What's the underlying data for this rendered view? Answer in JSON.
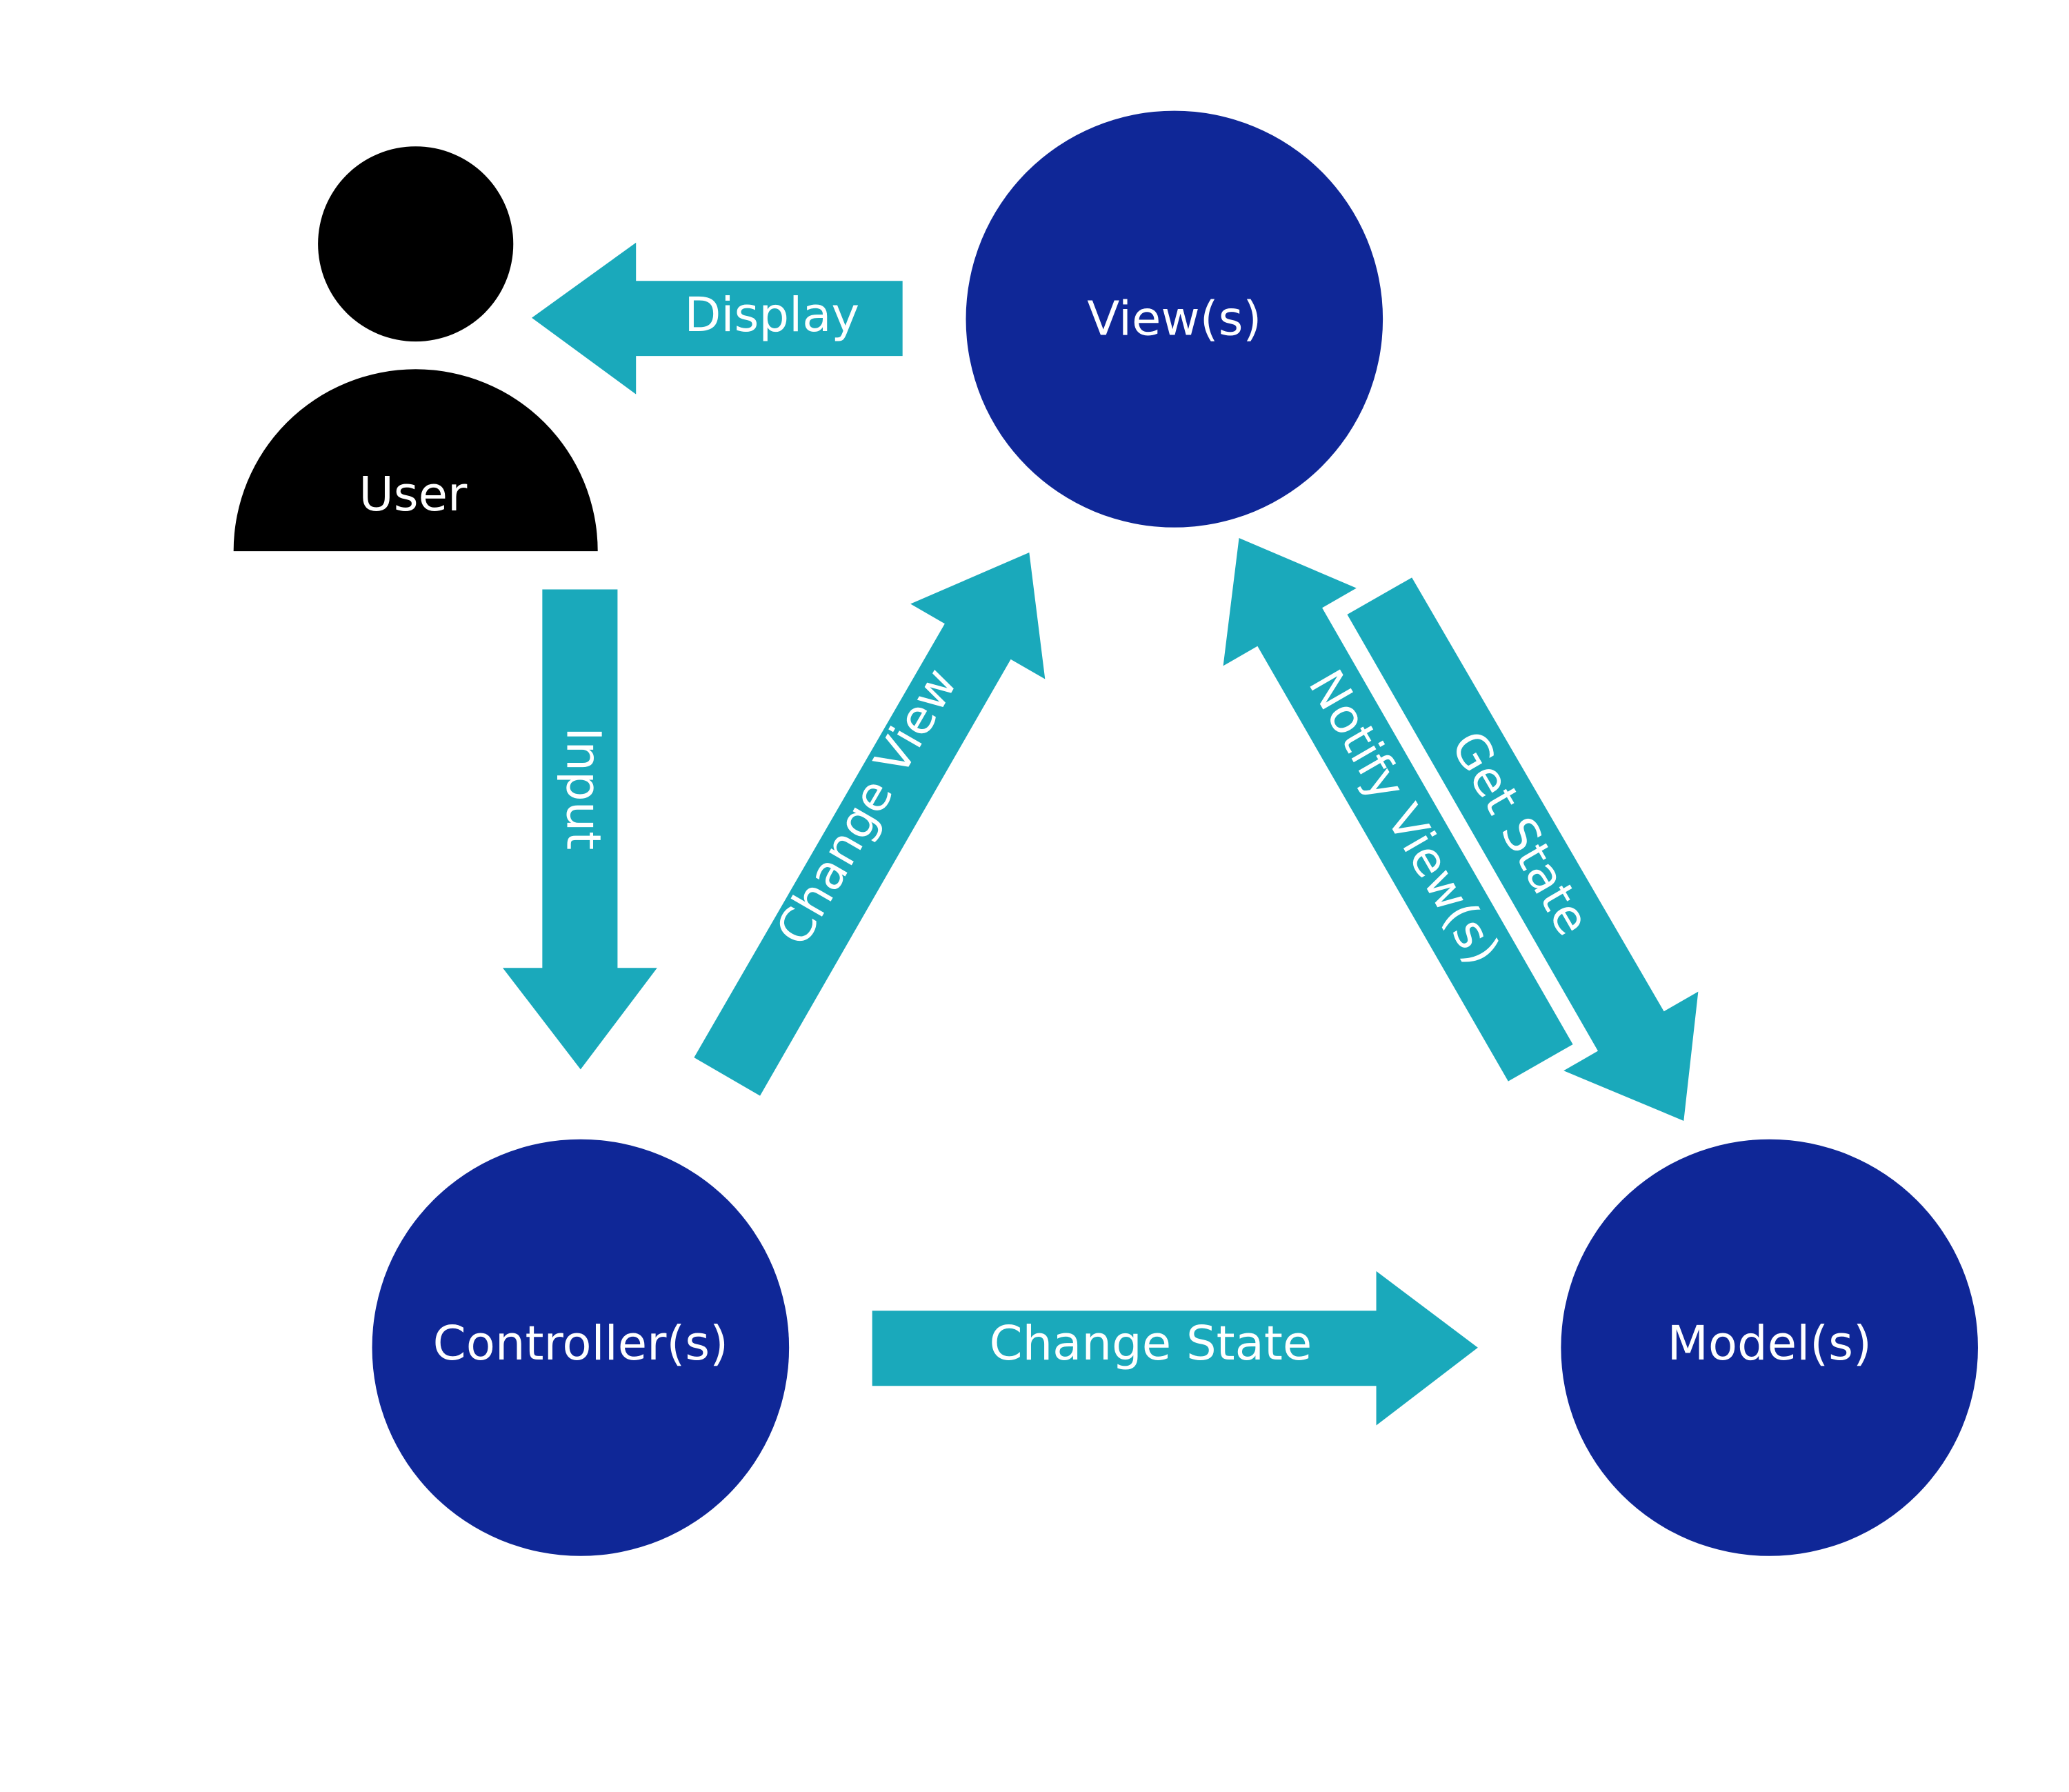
{
  "colors": {
    "node": "#0f2797",
    "arrow": "#1aa9bb",
    "user": "#000000",
    "text": "#ffffff",
    "background": "#ffffff"
  },
  "nodes": {
    "user": "User",
    "views": "View(s)",
    "controllers": "Controller(s)",
    "models": "Model(s)"
  },
  "arrows": {
    "display": "Display",
    "input": "Input",
    "change_view": "Change View",
    "change_state": "Change State",
    "notify_views": "Notify View(s)",
    "get_state": "Get State"
  }
}
